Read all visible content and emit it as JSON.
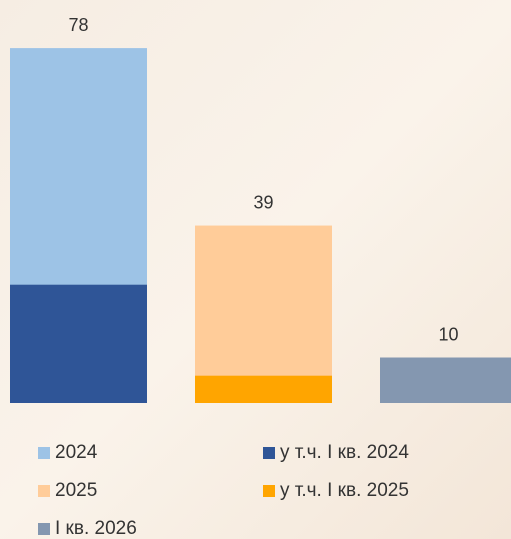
{
  "chart_data": {
    "type": "bar",
    "barmode": "overlay",
    "categories": [
      null,
      null,
      null
    ],
    "ylim": [
      0,
      80
    ],
    "legend": "bottom",
    "series": [
      {
        "name": "2024",
        "color": "#9dc3e6",
        "values": [
          78,
          null,
          null
        ],
        "labels": true
      },
      {
        "name": "у т.ч. I кв. 2024",
        "color": "#2f5597",
        "values": [
          26,
          null,
          null
        ],
        "labels": false
      },
      {
        "name": "2025",
        "color": "#ffcc99",
        "values": [
          null,
          39,
          null
        ],
        "labels": true
      },
      {
        "name": "у т.ч. I кв. 2025",
        "color": "#ffa500",
        "values": [
          null,
          6,
          null
        ],
        "labels": false
      },
      {
        "name": "I кв. 2026",
        "color": "#8497b0",
        "values": [
          null,
          null,
          10
        ],
        "labels": true
      }
    ]
  }
}
